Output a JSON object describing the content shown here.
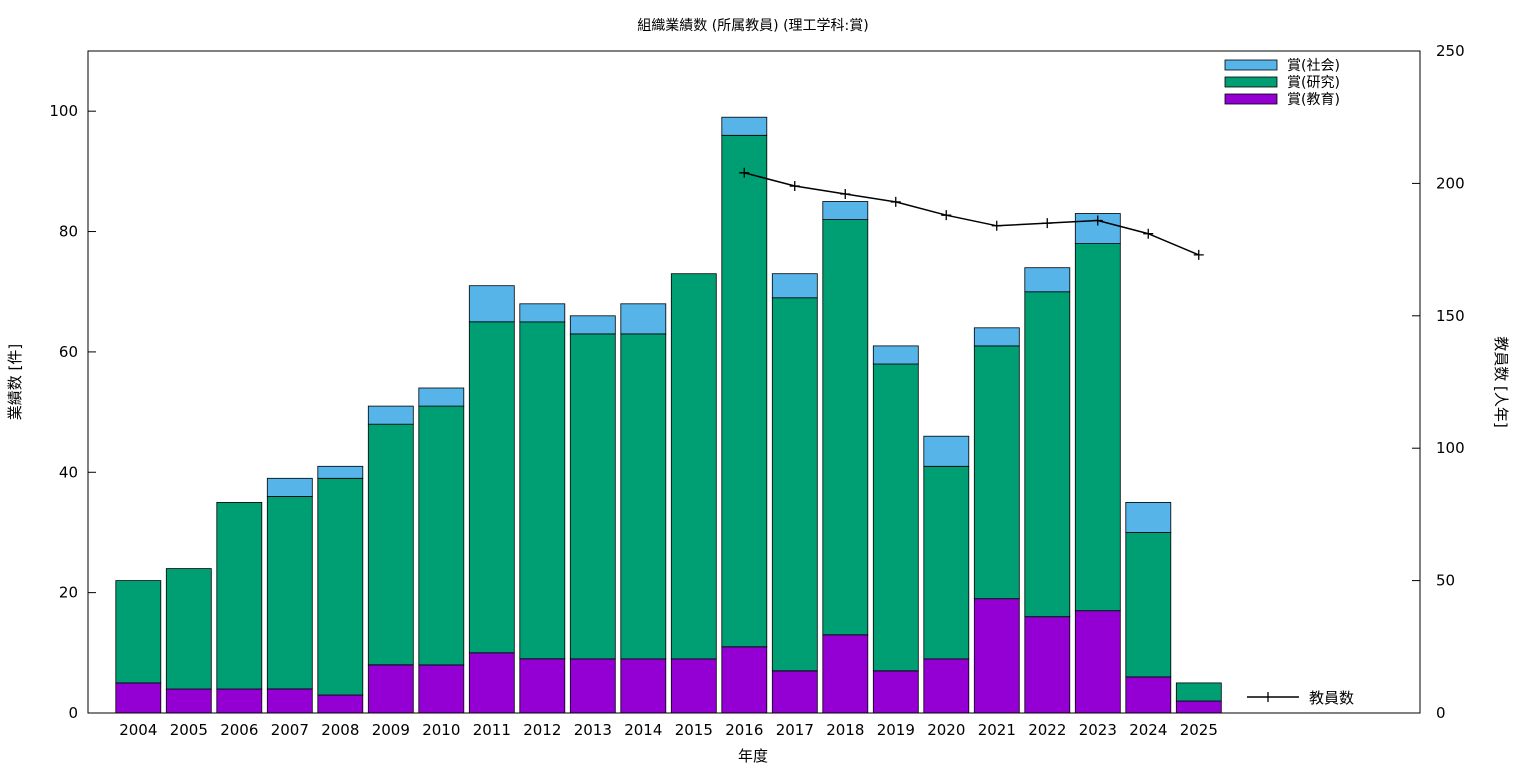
{
  "chart_data": {
    "type": "bar",
    "title": "組織業績数 (所属教員) (理工学科:賞)",
    "xlabel": "年度",
    "ylabel": "業績数 [件]",
    "y2label": "教員数 [人年]",
    "ylim": [
      0,
      110
    ],
    "y2lim": [
      0,
      250
    ],
    "yticks": [
      0,
      20,
      40,
      60,
      80,
      100
    ],
    "y2ticks": [
      0,
      50,
      100,
      150,
      200,
      250
    ],
    "stacked": true,
    "legend_position": "top-right",
    "categories": [
      "2004",
      "2005",
      "2006",
      "2007",
      "2008",
      "2009",
      "2010",
      "2011",
      "2012",
      "2013",
      "2014",
      "2015",
      "2016",
      "2017",
      "2018",
      "2019",
      "2020",
      "2021",
      "2022",
      "2023",
      "2024",
      "2025"
    ],
    "series": [
      {
        "name": "賞(教育)",
        "color": "#9400d3",
        "values": [
          5,
          4,
          4,
          4,
          3,
          8,
          8,
          10,
          9,
          9,
          9,
          9,
          11,
          7,
          13,
          7,
          9,
          19,
          16,
          17,
          6,
          2
        ]
      },
      {
        "name": "賞(研究)",
        "color": "#009e73",
        "values": [
          17,
          20,
          31,
          32,
          36,
          40,
          43,
          55,
          56,
          54,
          54,
          64,
          85,
          62,
          69,
          51,
          32,
          42,
          54,
          61,
          24,
          3
        ]
      },
      {
        "name": "賞(社会)",
        "color": "#56b4e9",
        "values": [
          0,
          0,
          0,
          3,
          2,
          3,
          3,
          6,
          3,
          3,
          5,
          0,
          3,
          4,
          3,
          3,
          5,
          3,
          4,
          5,
          5,
          0
        ]
      }
    ],
    "line_series": {
      "name": "教員数",
      "axis": "y2",
      "color": "#000000",
      "x": [
        "2016",
        "2017",
        "2018",
        "2019",
        "2020",
        "2021",
        "2022",
        "2023",
        "2024",
        "2025"
      ],
      "values": [
        204,
        199,
        196,
        193,
        188,
        184,
        185,
        186,
        181,
        173
      ]
    }
  }
}
